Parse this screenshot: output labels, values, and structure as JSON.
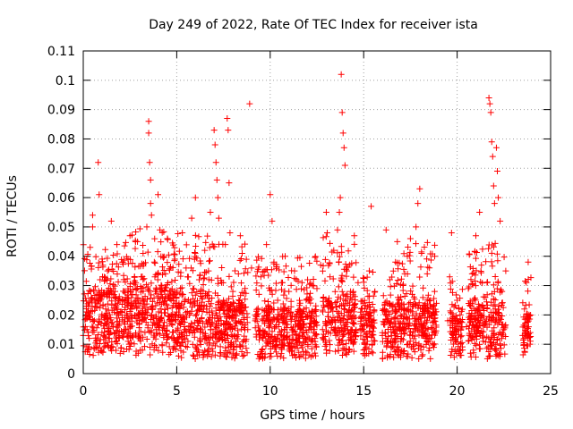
{
  "chart_data": {
    "type": "scatter",
    "title": "Day 249 of 2022, Rate Of TEC Index for receiver ista",
    "xlabel": "GPS time / hours",
    "ylabel": "ROTI / TECUs",
    "xlim": [
      0,
      25
    ],
    "ylim": [
      0,
      0.11
    ],
    "x_ticks": [
      "0",
      "5",
      "10",
      "15",
      "20",
      "25"
    ],
    "y_ticks": [
      "0",
      "0.01",
      "0.02",
      "0.03",
      "0.04",
      "0.05",
      "0.06",
      "0.07",
      "0.08",
      "0.09",
      "0.1",
      "0.11"
    ],
    "grid": true,
    "marker": "plus",
    "series_color": "#ff0000",
    "points": [
      [
        0.0,
        0.013
      ],
      [
        0.2,
        0.015
      ],
      [
        0.3,
        0.02
      ],
      [
        0.4,
        0.028
      ],
      [
        0.5,
        0.054
      ],
      [
        0.5,
        0.05
      ],
      [
        0.6,
        0.018
      ],
      [
        0.7,
        0.011
      ],
      [
        0.8,
        0.025
      ],
      [
        0.9,
        0.032
      ],
      [
        1.0,
        0.014
      ],
      [
        0.8,
        0.072
      ],
      [
        0.85,
        0.061
      ],
      [
        1.1,
        0.019
      ],
      [
        1.2,
        0.022
      ],
      [
        1.3,
        0.035
      ],
      [
        1.4,
        0.012
      ],
      [
        1.5,
        0.052
      ],
      [
        1.6,
        0.016
      ],
      [
        1.7,
        0.028
      ],
      [
        1.8,
        0.044
      ],
      [
        1.9,
        0.013
      ],
      [
        2.0,
        0.021
      ],
      [
        2.1,
        0.038
      ],
      [
        2.2,
        0.015
      ],
      [
        2.3,
        0.026
      ],
      [
        2.4,
        0.011
      ],
      [
        2.5,
        0.047
      ],
      [
        2.6,
        0.019
      ],
      [
        2.7,
        0.031
      ],
      [
        2.8,
        0.024
      ],
      [
        2.9,
        0.045
      ],
      [
        3.0,
        0.017
      ],
      [
        3.1,
        0.033
      ],
      [
        3.2,
        0.041
      ],
      [
        3.3,
        0.014
      ],
      [
        3.4,
        0.05
      ],
      [
        3.5,
        0.086
      ],
      [
        3.5,
        0.082
      ],
      [
        3.55,
        0.072
      ],
      [
        3.6,
        0.066
      ],
      [
        3.6,
        0.058
      ],
      [
        3.65,
        0.054
      ],
      [
        3.7,
        0.023
      ],
      [
        3.8,
        0.038
      ],
      [
        3.9,
        0.015
      ],
      [
        4.0,
        0.061
      ],
      [
        4.1,
        0.049
      ],
      [
        4.2,
        0.027
      ],
      [
        4.3,
        0.013
      ],
      [
        4.4,
        0.034
      ],
      [
        4.5,
        0.046
      ],
      [
        4.6,
        0.018
      ],
      [
        4.7,
        0.025
      ],
      [
        4.8,
        0.012
      ],
      [
        4.9,
        0.039
      ],
      [
        5.0,
        0.021
      ],
      [
        5.2,
        0.029
      ],
      [
        5.3,
        0.048
      ],
      [
        5.4,
        0.016
      ],
      [
        5.5,
        0.036
      ],
      [
        5.6,
        0.011
      ],
      [
        5.8,
        0.053
      ],
      [
        5.9,
        0.024
      ],
      [
        6.0,
        0.06
      ],
      [
        6.1,
        0.018
      ],
      [
        6.2,
        0.032
      ],
      [
        6.4,
        0.014
      ],
      [
        6.5,
        0.042
      ],
      [
        6.6,
        0.022
      ],
      [
        6.7,
        0.035
      ],
      [
        6.8,
        0.055
      ],
      [
        6.9,
        0.017
      ],
      [
        7.0,
        0.083
      ],
      [
        7.05,
        0.078
      ],
      [
        7.1,
        0.072
      ],
      [
        7.15,
        0.066
      ],
      [
        7.2,
        0.06
      ],
      [
        7.25,
        0.053
      ],
      [
        7.3,
        0.012
      ],
      [
        7.4,
        0.031
      ],
      [
        7.5,
        0.025
      ],
      [
        7.6,
        0.044
      ],
      [
        7.7,
        0.087
      ],
      [
        7.75,
        0.083
      ],
      [
        7.8,
        0.065
      ],
      [
        7.85,
        0.048
      ],
      [
        7.9,
        0.016
      ],
      [
        8.0,
        0.028
      ],
      [
        8.1,
        0.013
      ],
      [
        8.2,
        0.021
      ],
      [
        8.3,
        0.034
      ],
      [
        8.4,
        0.047
      ],
      [
        8.5,
        0.041
      ],
      [
        8.6,
        0.019
      ],
      [
        8.7,
        0.011
      ],
      [
        8.8,
        0.015
      ],
      [
        8.9,
        0.092
      ],
      [
        9.0,
        0.036
      ],
      [
        9.2,
        0.018
      ],
      [
        9.4,
        0.027
      ],
      [
        9.5,
        0.033
      ],
      [
        9.6,
        0.012
      ],
      [
        9.8,
        0.044
      ],
      [
        9.9,
        0.023
      ],
      [
        10.0,
        0.061
      ],
      [
        10.1,
        0.052
      ],
      [
        10.2,
        0.038
      ],
      [
        10.3,
        0.016
      ],
      [
        10.4,
        0.025
      ],
      [
        10.5,
        0.011
      ],
      [
        10.6,
        0.031
      ],
      [
        10.7,
        0.019
      ],
      [
        10.8,
        0.04
      ],
      [
        10.9,
        0.014
      ],
      [
        11.0,
        0.028
      ],
      [
        11.1,
        0.021
      ],
      [
        11.3,
        0.035
      ],
      [
        11.5,
        0.013
      ],
      [
        11.6,
        0.024
      ],
      [
        11.8,
        0.017
      ],
      [
        12.0,
        0.032
      ],
      [
        12.2,
        0.02
      ],
      [
        12.4,
        0.012
      ],
      [
        12.5,
        0.029
      ],
      [
        12.7,
        0.037
      ],
      [
        12.8,
        0.015
      ],
      [
        13.0,
        0.055
      ],
      [
        13.05,
        0.048
      ],
      [
        13.1,
        0.023
      ],
      [
        13.2,
        0.033
      ],
      [
        13.3,
        0.018
      ],
      [
        13.4,
        0.042
      ],
      [
        13.5,
        0.013
      ],
      [
        13.6,
        0.049
      ],
      [
        13.7,
        0.055
      ],
      [
        13.75,
        0.06
      ],
      [
        13.8,
        0.102
      ],
      [
        13.85,
        0.089
      ],
      [
        13.9,
        0.082
      ],
      [
        13.95,
        0.077
      ],
      [
        14.0,
        0.071
      ],
      [
        14.1,
        0.035
      ],
      [
        14.2,
        0.021
      ],
      [
        14.3,
        0.028
      ],
      [
        14.5,
        0.047
      ],
      [
        14.6,
        0.014
      ],
      [
        14.7,
        0.031
      ],
      [
        14.9,
        0.019
      ],
      [
        15.0,
        0.024
      ],
      [
        15.2,
        0.011
      ],
      [
        15.3,
        0.035
      ],
      [
        15.4,
        0.057
      ],
      [
        15.5,
        0.018
      ],
      [
        15.6,
        0.028
      ],
      [
        16.0,
        0.013
      ],
      [
        16.2,
        0.049
      ],
      [
        16.3,
        0.021
      ],
      [
        16.4,
        0.032
      ],
      [
        16.6,
        0.015
      ],
      [
        16.7,
        0.038
      ],
      [
        16.8,
        0.045
      ],
      [
        16.9,
        0.025
      ],
      [
        17.0,
        0.012
      ],
      [
        17.1,
        0.03
      ],
      [
        17.3,
        0.019
      ],
      [
        17.5,
        0.046
      ],
      [
        17.6,
        0.027
      ],
      [
        17.8,
        0.05
      ],
      [
        17.9,
        0.058
      ],
      [
        18.0,
        0.063
      ],
      [
        18.1,
        0.041
      ],
      [
        18.2,
        0.017
      ],
      [
        18.4,
        0.034
      ],
      [
        18.5,
        0.013
      ],
      [
        18.7,
        0.022
      ],
      [
        18.8,
        0.04
      ],
      [
        19.5,
        0.018
      ],
      [
        19.6,
        0.033
      ],
      [
        19.7,
        0.048
      ],
      [
        19.8,
        0.013
      ],
      [
        20.0,
        0.025
      ],
      [
        20.5,
        0.016
      ],
      [
        20.6,
        0.029
      ],
      [
        20.7,
        0.013
      ],
      [
        20.8,
        0.034
      ],
      [
        21.0,
        0.047
      ],
      [
        21.1,
        0.021
      ],
      [
        21.2,
        0.055
      ],
      [
        21.3,
        0.037
      ],
      [
        21.4,
        0.011
      ],
      [
        21.5,
        0.026
      ],
      [
        21.6,
        0.031
      ],
      [
        21.7,
        0.094
      ],
      [
        21.75,
        0.092
      ],
      [
        21.8,
        0.089
      ],
      [
        21.85,
        0.079
      ],
      [
        21.9,
        0.074
      ],
      [
        21.95,
        0.064
      ],
      [
        22.0,
        0.058
      ],
      [
        22.1,
        0.077
      ],
      [
        22.15,
        0.069
      ],
      [
        22.2,
        0.06
      ],
      [
        22.3,
        0.052
      ],
      [
        22.4,
        0.028
      ],
      [
        22.5,
        0.015
      ],
      [
        22.6,
        0.035
      ],
      [
        23.5,
        0.013
      ],
      [
        23.6,
        0.022
      ],
      [
        23.7,
        0.031
      ],
      [
        23.8,
        0.038
      ],
      [
        23.9,
        0.01
      ]
    ],
    "bands": [
      [
        0.0,
        2.5,
        0.006,
        0.028,
        0.045
      ],
      [
        2.5,
        4.5,
        0.006,
        0.03,
        0.05
      ],
      [
        4.5,
        6.8,
        0.005,
        0.028,
        0.048
      ],
      [
        6.8,
        8.8,
        0.005,
        0.025,
        0.045
      ],
      [
        9.2,
        12.5,
        0.005,
        0.022,
        0.04
      ],
      [
        12.8,
        14.6,
        0.006,
        0.026,
        0.047
      ],
      [
        14.8,
        15.6,
        0.006,
        0.022,
        0.035
      ],
      [
        16.0,
        18.9,
        0.005,
        0.024,
        0.045
      ],
      [
        19.6,
        20.3,
        0.005,
        0.02,
        0.032
      ],
      [
        20.6,
        22.6,
        0.005,
        0.024,
        0.045
      ],
      [
        23.5,
        23.95,
        0.006,
        0.02,
        0.033
      ]
    ]
  }
}
